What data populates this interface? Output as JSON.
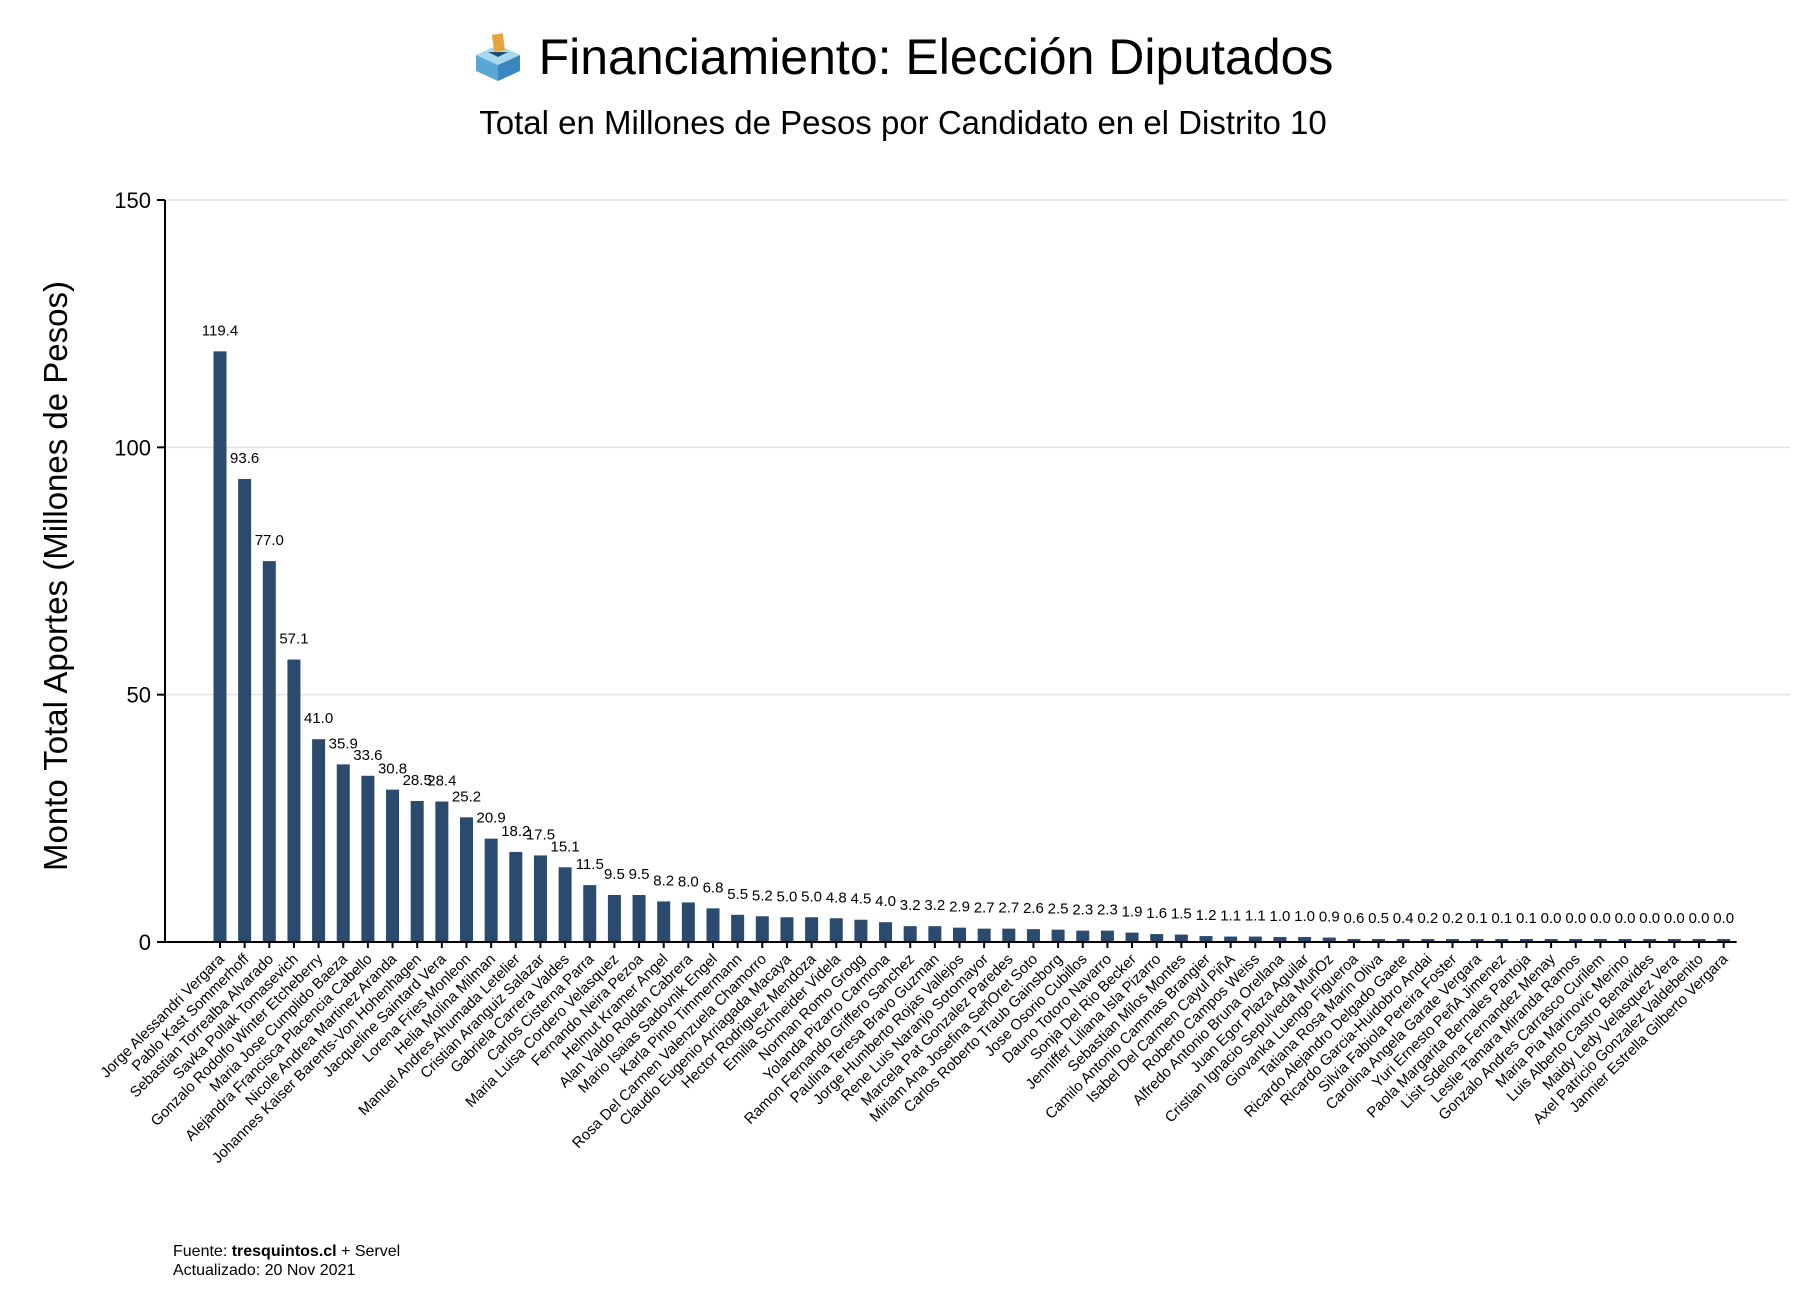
{
  "header": {
    "title": "Financiamiento: Elección Diputados",
    "title_icon": "ballot-box-icon",
    "subtitle": "Total en Millones de Pesos por Candidato en el Distrito 10"
  },
  "footer": {
    "source_prefix": "Fuente: ",
    "source_site": "tresquintos.cl",
    "source_suffix": " + Servel",
    "updated": "Actualizado: 20 Nov 2021"
  },
  "colors": {
    "bar": "#2a4a6e",
    "grid": "#e3e3e3"
  },
  "chart_data": {
    "type": "bar",
    "ylabel": "Monto Total Aportes (Millones de Pesos)",
    "xlabel": "",
    "ylim": [
      0,
      150
    ],
    "yticks": [
      0,
      50,
      100,
      150
    ],
    "grid": "horizontal",
    "legend": "none",
    "categories": [
      "Jorge Alessandri Vergara",
      "Pablo Kast Sommerhoff",
      "Sebastian Torrealba Alvarado",
      "Savka Pollak Tomasevich",
      "Gonzalo Rodolfo Winter Etcheberry",
      "Maria Jose Cumplido Baeza",
      "Alejandra Francisca Placencia Cabello",
      "Nicole Andrea Martinez Aranda",
      "Johannes Kaiser Barents-Von Hohenhagen",
      "Jacqueline Saintard Vera",
      "Lorena Fries Monleon",
      "Helia Molina Milman",
      "Manuel Andres Ahumada Letelier",
      "Cristian Aranguiz Salazar",
      "Gabriela Carrera Valdes",
      "Carlos Cisterna Parra",
      "Maria Luisa Cordero Velasquez",
      "Fernando Neira Pezoa",
      "Helmut Kramer Angel",
      "Alan Valdo Roldan Cabrera",
      "Mario Isaias Sadovnik Engel",
      "Karla Pinto Timmermann",
      "Rosa Del Carmen Valenzuela Chamorro",
      "Claudio Eugenio Arriagada Macaya",
      "Hector Rodriguez Mendoza",
      "Emilia Schneider Videla",
      "Norman Romo Grogg",
      "Yolanda Pizarro Carmona",
      "Ramon Fernando Griffero Sanchez",
      "Paulina Teresa Bravo Guzman",
      "Jorge Humberto Rojas Vallejos",
      "Rene Luis Naranjo Sotomayor",
      "Marcela Pat Gonzalez Paredes",
      "Miriam Ana Josefina SeñOret Soto",
      "Carlos Roberto Traub Gainsborg",
      "Jose Osorio Cubillos",
      "Dauno Totoro Navarro",
      "Sonja Del Rio Becker",
      "Jenniffer Liliana Isla Pizarro",
      "Sebastian Milos Montes",
      "Camilo Antonio Cammas Brangier",
      "Isabel Del Carmen Cayul PiñA",
      "Roberto Campos Weiss",
      "Alfredo Antonio Bruna Orellana",
      "Juan Egor Plaza Aguilar",
      "Cristian Ignacio Sepulveda MuñOz",
      "Giovanka Luengo Figueroa",
      "Tatiana Rosa Marin Oliva",
      "Ricardo Alejandro Delgado Gaete",
      "Ricardo Garcia-Huidobro Andai",
      "Silvia Fabiola Pereira Foster",
      "Carolina Angela Garate Vergara",
      "Yuri Ernesto PeñA Jimenez",
      "Paola Margarita Bernales Pantoja",
      "Lisit Sdelona Fernandez Menay",
      "Leslie Tamara Miranda Ramos",
      "Gonzalo Andres Carrasco Curilem",
      "Maria Pia Marinovic Merino",
      "Luis Alberto Castro Benavides",
      "Maidy Ledy Velasquez Vera",
      "Axel Patricio Gonzalez Valdebenito",
      "Jannier Estrella Gilberto Vergara"
    ],
    "values": [
      119.4,
      93.6,
      77.0,
      57.1,
      41.0,
      35.9,
      33.6,
      30.8,
      28.5,
      28.4,
      25.2,
      20.9,
      18.2,
      17.5,
      15.1,
      11.5,
      9.5,
      9.5,
      8.2,
      8.0,
      6.8,
      5.5,
      5.2,
      5.0,
      5.0,
      4.8,
      4.5,
      4.0,
      3.2,
      3.2,
      2.9,
      2.7,
      2.7,
      2.6,
      2.5,
      2.3,
      2.3,
      1.9,
      1.6,
      1.5,
      1.2,
      1.1,
      1.1,
      1.0,
      1.0,
      0.9,
      0.6,
      0.5,
      0.4,
      0.2,
      0.2,
      0.1,
      0.1,
      0.1,
      0.0,
      0.0,
      0.0,
      0.0,
      0.0,
      0.0,
      0.0,
      0.0
    ],
    "value_labels": [
      "119.4",
      "93.6",
      "77.0",
      "57.1",
      "41.0",
      "35.9",
      "33.6",
      "30.8",
      "28.5",
      "28.4",
      "25.2",
      "20.9",
      "18.2",
      "17.5",
      "15.1",
      "11.5",
      "9.5",
      "9.5",
      "8.2",
      "8.0",
      "6.8",
      "5.5",
      "5.2",
      "5.0",
      "5.0",
      "4.8",
      "4.5",
      "4.0",
      "3.2",
      "3.2",
      "2.9",
      "2.7",
      "2.7",
      "2.6",
      "2.5",
      "2.3",
      "2.3",
      "1.9",
      "1.6",
      "1.5",
      "1.2",
      "1.1",
      "1.1",
      "1.0",
      "1.0",
      "0.9",
      "0.6",
      "0.5",
      "0.4",
      "0.2",
      "0.2",
      "0.1",
      "0.1",
      "0.1",
      "0.0",
      "0.0",
      "0.0",
      "0.0",
      "0.0",
      "0.0",
      "0.0",
      "0.0"
    ]
  }
}
